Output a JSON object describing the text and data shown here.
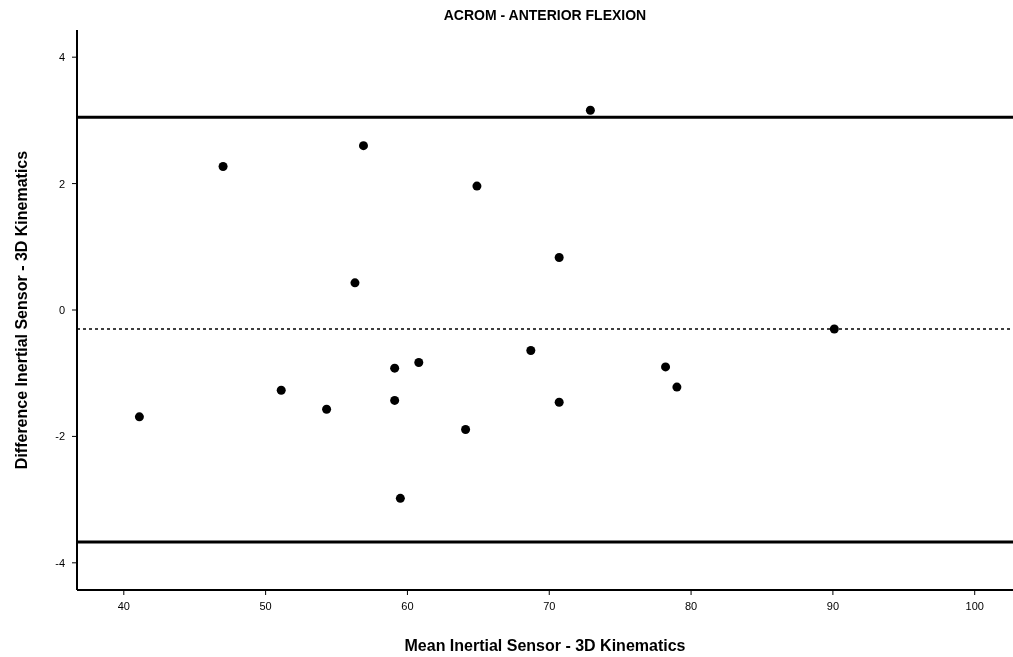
{
  "chart_data": {
    "type": "scatter",
    "title": "ACROM - ANTERIOR FLEXION",
    "xlabel": "Mean Inertial Sensor - 3D Kinematics",
    "ylabel": "Difference Inertial Sensor - 3D Kinematics",
    "x": [
      41.1,
      47.0,
      51.1,
      54.3,
      56.3,
      56.9,
      59.1,
      59.1,
      59.5,
      60.8,
      64.1,
      64.9,
      68.7,
      70.7,
      70.7,
      72.9,
      78.2,
      79.0,
      90.1
    ],
    "values": [
      -1.69,
      2.27,
      -1.27,
      -1.57,
      0.43,
      2.6,
      -0.92,
      -1.43,
      -2.98,
      -0.83,
      -1.89,
      1.96,
      -0.64,
      0.83,
      -1.46,
      3.16,
      -0.9,
      -1.22,
      -0.3
    ],
    "color": "#000000",
    "marker": "circle",
    "grid": false,
    "xlim": [
      36.7,
      102.7
    ],
    "xticks": [
      40,
      50,
      60,
      70,
      80,
      90,
      100
    ],
    "ylim": [
      -4.43,
      4.43
    ],
    "yticks": [
      -4,
      -2,
      0,
      2,
      4
    ],
    "ref_lines": [
      {
        "axis": "y",
        "value": 3.05,
        "color": "#000000",
        "line_style": "solid"
      },
      {
        "axis": "y",
        "value": -0.3,
        "color": "#000000",
        "line_style": "dotted"
      },
      {
        "axis": "y",
        "value": -3.67,
        "color": "#000000",
        "line_style": "solid"
      }
    ]
  }
}
